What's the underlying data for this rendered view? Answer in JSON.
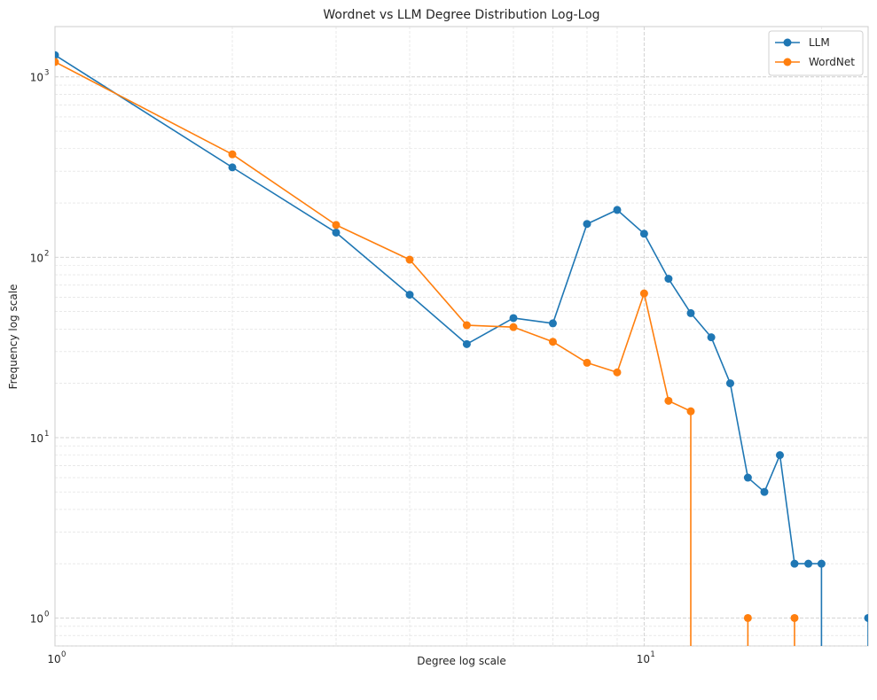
{
  "chart_data": {
    "type": "line",
    "title": "Wordnet vs LLM Degree Distribution Log-Log",
    "xlabel": "Degree log scale",
    "ylabel": "Frequency log scale",
    "xscale": "log",
    "yscale": "log",
    "xlim": [
      1,
      24
    ],
    "ylim": [
      0.7,
      1900
    ],
    "grid": true,
    "legend_position": "top-right",
    "x_ticks": [
      {
        "value": 1,
        "base": "10",
        "exp": "0"
      },
      {
        "value": 10,
        "base": "10",
        "exp": "1"
      }
    ],
    "y_ticks": [
      {
        "value": 1,
        "base": "10",
        "exp": "0"
      },
      {
        "value": 10,
        "base": "10",
        "exp": "1"
      },
      {
        "value": 100,
        "base": "10",
        "exp": "2"
      },
      {
        "value": 1000,
        "base": "10",
        "exp": "3"
      }
    ],
    "series": [
      {
        "name": "LLM",
        "color": "#1f77b4",
        "x": [
          1,
          2,
          3,
          4,
          5,
          6,
          7,
          8,
          9,
          10,
          11,
          12,
          13,
          14,
          15,
          16,
          17,
          18,
          19,
          20,
          24
        ],
        "y": [
          1320,
          315,
          137,
          62,
          33,
          46,
          43,
          153,
          183,
          135,
          76,
          49,
          36,
          20,
          6,
          5,
          8,
          2,
          2,
          2,
          1
        ]
      },
      {
        "name": "WordNet",
        "color": "#ff7f0e",
        "x": [
          1,
          2,
          3,
          4,
          5,
          6,
          7,
          8,
          9,
          10,
          11,
          12,
          15,
          18
        ],
        "y": [
          1210,
          372,
          151,
          97,
          42,
          41,
          34,
          26,
          23,
          63,
          16,
          14,
          1,
          1
        ]
      }
    ]
  }
}
